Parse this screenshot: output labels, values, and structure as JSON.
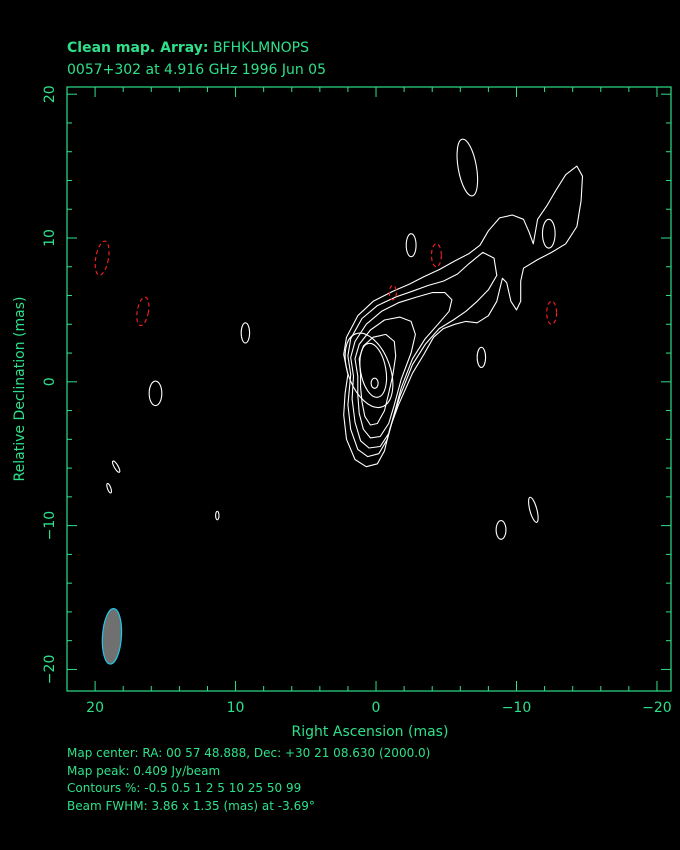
{
  "title": {
    "line1_bold": "Clean map.  Array:",
    "line1_rest": " BFHKLMNOPS",
    "line2": "0057+302 at 4.916 GHz 1996 Jun 05"
  },
  "info": {
    "map_center": "Map center:  RA: 00 57 48.888,  Dec: +30 21 08.630 (2000.0)",
    "map_peak": "Map peak: 0.409 Jy/beam",
    "contours": "Contours %: -0.5 0.5 1 2 5 10 25 50 99",
    "beam": "Beam FWHM: 3.86 x 1.35 (mas) at -3.69°"
  },
  "colors": {
    "axis": "#2fe08a",
    "positive_contour": "#ffffff",
    "negative_contour": "#ff2020",
    "beam_fill": "#707070",
    "beam_edge": "#20c8e8"
  },
  "chart_data": {
    "type": "contour",
    "xlabel": "Right Ascension  (mas)",
    "ylabel": "Relative Declination  (mas)",
    "xlim": [
      22,
      -21
    ],
    "ylim": [
      -21.5,
      20.5
    ],
    "xticks": [
      20,
      10,
      0,
      -10,
      -20
    ],
    "xtick_labels": [
      "20",
      "10",
      "0",
      "−10",
      "−20"
    ],
    "yticks": [
      20,
      10,
      0,
      -10,
      -20
    ],
    "ytick_labels": [
      "20",
      "10",
      "0",
      "−10",
      "−20"
    ],
    "contour_levels_percent": [
      -0.5,
      0.5,
      1,
      2,
      5,
      10,
      25,
      50,
      99
    ],
    "peak_jy_per_beam": 0.409,
    "peak_position": [
      0,
      0
    ],
    "beam": {
      "major_mas": 3.86,
      "minor_mas": 1.35,
      "pa_deg": -3.69,
      "position": [
        18.8,
        -17.7
      ]
    },
    "core_contours": [
      {
        "level": 99,
        "cx": 0.1,
        "cy": -0.1,
        "a": 0.25,
        "b": 0.35,
        "angle": 0
      },
      {
        "level": 50,
        "cx": 0.2,
        "cy": 0.8,
        "a": 0.9,
        "b": 1.9,
        "angle": -10
      },
      {
        "level": 25,
        "cx": 0.5,
        "cy": 0.8,
        "a": 1.5,
        "b": 2.7,
        "angle": -20
      }
    ],
    "negative_blobs": [
      {
        "cx": 19.5,
        "cy": 8.6,
        "a": 0.45,
        "b": 1.2,
        "angle": 10
      },
      {
        "cx": 16.6,
        "cy": 4.9,
        "a": 0.4,
        "b": 1.0,
        "angle": 10
      },
      {
        "cx": -4.3,
        "cy": 8.8,
        "a": 0.35,
        "b": 0.8,
        "angle": 0
      },
      {
        "cx": -12.5,
        "cy": 4.8,
        "a": 0.35,
        "b": 0.8,
        "angle": 0
      },
      {
        "cx": -1.2,
        "cy": 6.2,
        "a": 0.25,
        "b": 0.5,
        "angle": 0
      }
    ],
    "positive_blobs": [
      {
        "cx": 15.7,
        "cy": -0.8,
        "a": 0.45,
        "b": 0.85,
        "angle": 0
      },
      {
        "cx": 9.3,
        "cy": 3.4,
        "a": 0.3,
        "b": 0.7,
        "angle": 0
      },
      {
        "cx": -2.5,
        "cy": 9.5,
        "a": 0.35,
        "b": 0.8,
        "angle": 0
      },
      {
        "cx": -6.5,
        "cy": 14.9,
        "a": 0.65,
        "b": 2.0,
        "angle": -10
      },
      {
        "cx": -7.5,
        "cy": 1.7,
        "a": 0.3,
        "b": 0.7,
        "angle": 0
      },
      {
        "cx": -12.3,
        "cy": 10.3,
        "a": 0.45,
        "b": 1.0,
        "angle": 0
      },
      {
        "cx": -8.9,
        "cy": -10.3,
        "a": 0.35,
        "b": 0.65,
        "angle": 0
      },
      {
        "cx": -11.2,
        "cy": -8.9,
        "a": 0.25,
        "b": 0.9,
        "angle": -15
      },
      {
        "cx": 11.3,
        "cy": -9.3,
        "a": 0.12,
        "b": 0.3,
        "angle": 0
      },
      {
        "cx": 19.0,
        "cy": -7.4,
        "a": 0.12,
        "b": 0.35,
        "angle": -20
      },
      {
        "cx": 18.5,
        "cy": -5.9,
        "a": 0.14,
        "b": 0.45,
        "angle": -30
      }
    ],
    "jet_contours": [
      {
        "level": 0.5,
        "points": [
          [
            2.0,
            0.5
          ],
          [
            2.3,
            1.9
          ],
          [
            2.1,
            3.1
          ],
          [
            1.3,
            4.6
          ],
          [
            0.2,
            5.6
          ],
          [
            -1.2,
            6.3
          ],
          [
            -2.4,
            6.8
          ],
          [
            -3.4,
            7.3
          ],
          [
            -4.5,
            7.8
          ],
          [
            -5.6,
            8.4
          ],
          [
            -6.6,
            8.9
          ],
          [
            -7.4,
            9.5
          ],
          [
            -8.0,
            10.5
          ],
          [
            -8.8,
            11.4
          ],
          [
            -9.7,
            11.6
          ],
          [
            -10.5,
            11.3
          ],
          [
            -10.9,
            10.4
          ],
          [
            -11.2,
            9.6
          ],
          [
            -11.5,
            11.3
          ],
          [
            -12.2,
            12.3
          ],
          [
            -12.8,
            13.3
          ],
          [
            -13.5,
            14.4
          ],
          [
            -14.3,
            15.0
          ],
          [
            -14.7,
            14.3
          ],
          [
            -14.6,
            12.6
          ],
          [
            -14.3,
            10.8
          ],
          [
            -13.5,
            9.6
          ],
          [
            -12.5,
            9.0
          ],
          [
            -11.5,
            8.5
          ],
          [
            -10.5,
            7.9
          ],
          [
            -10.3,
            7.0
          ],
          [
            -10.3,
            5.6
          ],
          [
            -10.0,
            5.0
          ],
          [
            -9.6,
            5.6
          ],
          [
            -9.3,
            6.9
          ],
          [
            -9.0,
            7.2
          ],
          [
            -8.6,
            5.6
          ],
          [
            -8.0,
            4.6
          ],
          [
            -7.2,
            4.1
          ],
          [
            -6.4,
            4.2
          ],
          [
            -5.6,
            4.0
          ],
          [
            -4.8,
            3.7
          ],
          [
            -4.1,
            3.1
          ],
          [
            -3.4,
            1.9
          ],
          [
            -2.6,
            0.6
          ],
          [
            -1.6,
            -1.6
          ],
          [
            -1.0,
            -3.2
          ],
          [
            -0.6,
            -4.8
          ],
          [
            -0.1,
            -5.7
          ],
          [
            0.7,
            -5.9
          ],
          [
            1.5,
            -5.4
          ],
          [
            2.1,
            -4.0
          ],
          [
            2.3,
            -2.3
          ],
          [
            2.2,
            -0.8
          ]
        ]
      },
      {
        "level": 1,
        "points": [
          [
            1.8,
            0.5
          ],
          [
            2.0,
            1.8
          ],
          [
            1.8,
            3.0
          ],
          [
            1.0,
            4.4
          ],
          [
            -0.1,
            5.3
          ],
          [
            -1.4,
            5.9
          ],
          [
            -2.6,
            6.3
          ],
          [
            -3.7,
            6.7
          ],
          [
            -4.8,
            7.0
          ],
          [
            -5.8,
            7.5
          ],
          [
            -6.6,
            8.2
          ],
          [
            -7.6,
            9.0
          ],
          [
            -8.4,
            8.6
          ],
          [
            -8.6,
            7.4
          ],
          [
            -8.0,
            6.4
          ],
          [
            -7.2,
            5.6
          ],
          [
            -6.4,
            4.9
          ],
          [
            -5.5,
            4.3
          ],
          [
            -4.5,
            3.7
          ],
          [
            -3.5,
            2.6
          ],
          [
            -2.6,
            1.2
          ],
          [
            -1.7,
            -1.0
          ],
          [
            -1.2,
            -2.6
          ],
          [
            -0.8,
            -4.0
          ],
          [
            -0.2,
            -5.0
          ],
          [
            0.6,
            -5.2
          ],
          [
            1.3,
            -4.7
          ],
          [
            1.8,
            -3.3
          ],
          [
            2.0,
            -1.6
          ]
        ]
      },
      {
        "level": 2,
        "points": [
          [
            1.6,
            0.4
          ],
          [
            1.8,
            1.7
          ],
          [
            1.5,
            2.8
          ],
          [
            0.7,
            4.0
          ],
          [
            -0.4,
            4.9
          ],
          [
            -1.6,
            5.5
          ],
          [
            -2.9,
            5.9
          ],
          [
            -4.0,
            6.2
          ],
          [
            -4.9,
            6.2
          ],
          [
            -5.4,
            5.7
          ],
          [
            -5.2,
            4.9
          ],
          [
            -4.5,
            4.1
          ],
          [
            -3.5,
            3.0
          ],
          [
            -2.6,
            1.6
          ],
          [
            -1.8,
            -0.4
          ],
          [
            -1.3,
            -2.2
          ],
          [
            -0.9,
            -3.6
          ],
          [
            -0.3,
            -4.5
          ],
          [
            0.5,
            -4.6
          ],
          [
            1.1,
            -4.1
          ],
          [
            1.5,
            -2.8
          ],
          [
            1.7,
            -1.2
          ]
        ]
      },
      {
        "level": 5,
        "points": [
          [
            1.3,
            0.4
          ],
          [
            1.5,
            1.6
          ],
          [
            1.2,
            2.6
          ],
          [
            0.4,
            3.6
          ],
          [
            -0.6,
            4.3
          ],
          [
            -1.7,
            4.5
          ],
          [
            -2.5,
            4.2
          ],
          [
            -2.8,
            3.3
          ],
          [
            -2.5,
            2.0
          ],
          [
            -1.8,
            0.2
          ],
          [
            -1.3,
            -1.6
          ],
          [
            -0.9,
            -2.9
          ],
          [
            -0.3,
            -3.8
          ],
          [
            0.4,
            -3.9
          ],
          [
            0.9,
            -3.3
          ],
          [
            1.2,
            -2.2
          ],
          [
            1.3,
            -0.9
          ]
        ]
      },
      {
        "level": 10,
        "points": [
          [
            1.1,
            0.5
          ],
          [
            1.2,
            1.6
          ],
          [
            0.9,
            2.5
          ],
          [
            0.2,
            3.1
          ],
          [
            -0.7,
            3.3
          ],
          [
            -1.3,
            2.8
          ],
          [
            -1.4,
            1.8
          ],
          [
            -1.2,
            0.5
          ],
          [
            -0.9,
            -0.8
          ],
          [
            -0.6,
            -2.0
          ],
          [
            -0.1,
            -2.9
          ],
          [
            0.4,
            -3.0
          ],
          [
            0.8,
            -2.4
          ],
          [
            1.0,
            -1.4
          ],
          [
            1.1,
            -0.4
          ]
        ]
      }
    ]
  }
}
